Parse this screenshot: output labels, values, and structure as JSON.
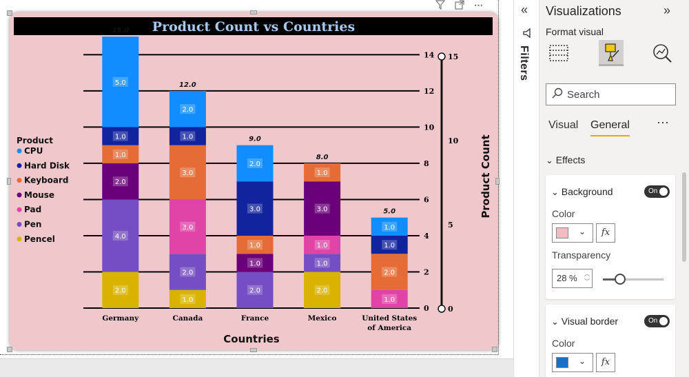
{
  "canvas": {
    "top_icons": [
      "filter-icon",
      "focus-mode-icon",
      "more-options-icon"
    ]
  },
  "chart_data": {
    "type": "bar",
    "stacked": true,
    "title": "Product Count vs Countries",
    "xlabel": "Countries",
    "ylabel": "Product Count",
    "ylim": [
      0,
      15
    ],
    "y_ticks": [
      0,
      2,
      4,
      6,
      8,
      10,
      12,
      14
    ],
    "slider_ticks": [
      0,
      5,
      10,
      15
    ],
    "categories": [
      "Germany",
      "Canada",
      "France",
      "Mexico",
      "United States of America"
    ],
    "category_lines": [
      [
        "Germany"
      ],
      [
        "Canada"
      ],
      [
        "France"
      ],
      [
        "Mexico"
      ],
      [
        "United States",
        "of America"
      ]
    ],
    "totals": [
      15,
      12,
      9,
      8,
      5
    ],
    "total_labels": [
      "15.0",
      "12.0",
      "9.0",
      "8.0",
      "5.0"
    ],
    "legend_title": "Product",
    "legend_position": "left",
    "grid": true,
    "series": [
      {
        "name": "CPU",
        "color": "#118dff",
        "values": [
          5,
          2,
          2,
          0,
          1
        ]
      },
      {
        "name": "Hard Disk",
        "color": "#12239e",
        "values": [
          1,
          1,
          3,
          0,
          1
        ]
      },
      {
        "name": "Keyboard",
        "color": "#e66c37",
        "values": [
          1,
          3,
          1,
          1,
          2
        ]
      },
      {
        "name": "Mouse",
        "color": "#6b007b",
        "values": [
          2,
          0,
          1,
          3,
          0
        ]
      },
      {
        "name": "Pad",
        "color": "#e044a7",
        "values": [
          0,
          3,
          0,
          1,
          1
        ]
      },
      {
        "name": "Pen",
        "color": "#744ec2",
        "values": [
          4,
          2,
          2,
          1,
          0
        ]
      },
      {
        "name": "Pencel",
        "color": "#d9b300",
        "values": [
          2,
          1,
          0,
          2,
          0
        ]
      }
    ],
    "stack_order_bottom_to_top": [
      "Pencel",
      "Pen",
      "Pad",
      "Mouse",
      "Keyboard",
      "Hard Disk",
      "CPU"
    ],
    "background_color": "#f0c8cb",
    "title_bar_color": "#000000",
    "title_color": "#a7c8f0"
  },
  "filters": {
    "label": "Filters"
  },
  "viz_pane": {
    "title": "Visualizations",
    "format_visual_label": "Format visual",
    "search_placeholder": "Search",
    "tabs": [
      "Visual",
      "General"
    ],
    "active_tab": "General",
    "effects_label": "Effects",
    "background": {
      "title": "Background",
      "toggle": "On",
      "color_label": "Color",
      "color": "#f4bcc0",
      "transparency_label": "Transparency",
      "transparency_value": "28",
      "transparency_unit": "%",
      "transparency_fraction": 0.28
    },
    "visual_border": {
      "title": "Visual border",
      "toggle": "On",
      "color_label": "Color",
      "color": "#1a6fc4"
    }
  }
}
